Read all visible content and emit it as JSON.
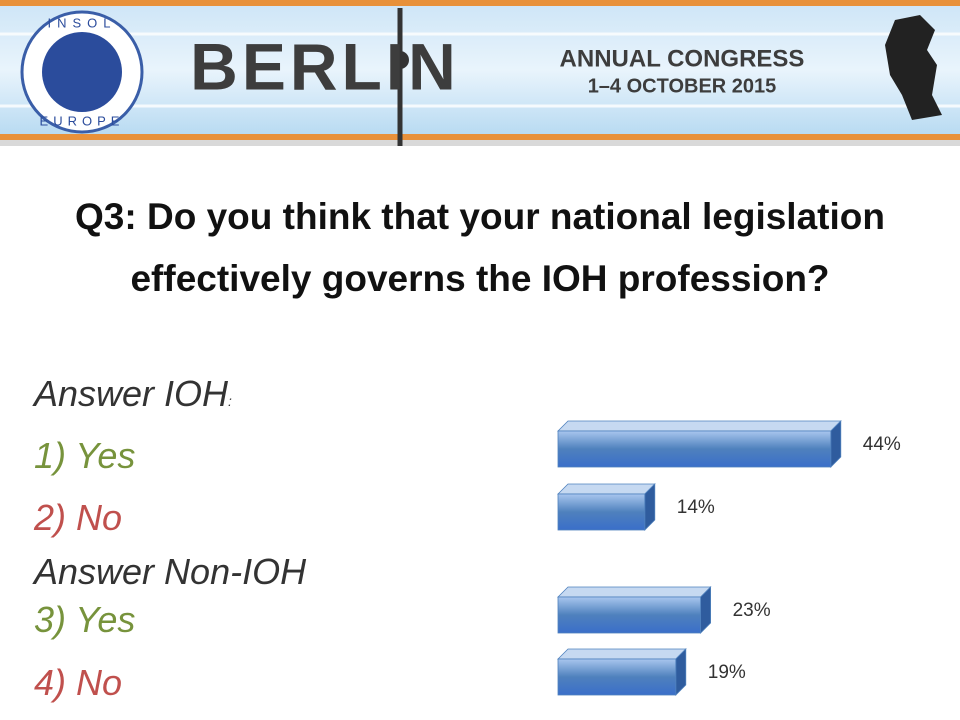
{
  "header": {
    "logo_top": "INSOL",
    "logo_bottom": "EUROPE",
    "city": "BERLIN",
    "event": "ANNUAL CONGRESS",
    "dates": "1–4 OCTOBER 2015"
  },
  "answers": {
    "group_1": "Answer IOH",
    "group_1_mark": ":",
    "item_1": "1) Yes",
    "item_2": "2) No",
    "group_2": "Answer Non-IOH",
    "item_3": "3) Yes",
    "item_4": "4) No"
  },
  "chart_data": {
    "type": "bar",
    "orientation": "horizontal",
    "title": "Q3: Do you think that your national legislation effectively governs the IOH profession?",
    "categories": [
      null,
      null,
      null,
      null
    ],
    "values": [
      44,
      14,
      23,
      19
    ],
    "value_labels": [
      "44%",
      "14%",
      "23%",
      "19%"
    ],
    "color": "#4f81bd"
  }
}
